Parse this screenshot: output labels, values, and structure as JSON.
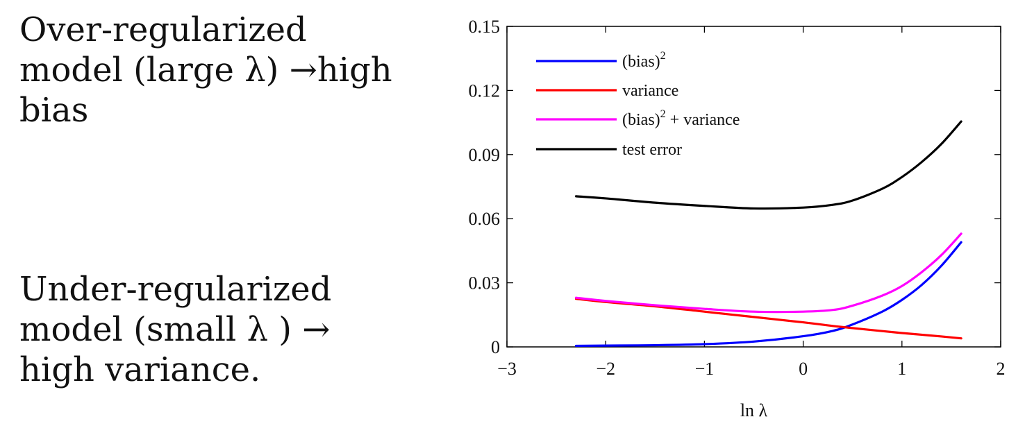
{
  "slide": {
    "over_lines": [
      "Over-regularized",
      "model (large λ) →high",
      "bias"
    ],
    "under_lines": [
      "Under-regularized",
      "model (small λ ) →",
      "high variance."
    ]
  },
  "chart_data": {
    "type": "line",
    "xlabel": "ln λ",
    "ylabel": "",
    "xlim": [
      -3,
      2
    ],
    "ylim": [
      0,
      0.15
    ],
    "x_ticks": [
      -3,
      -2,
      -1,
      0,
      1,
      2
    ],
    "x_tick_labels": [
      "−3",
      "−2",
      "−1",
      "0",
      "1",
      "2"
    ],
    "y_ticks": [
      0,
      0.03,
      0.06,
      0.09,
      0.12,
      0.15
    ],
    "y_tick_labels": [
      "0",
      "0.03",
      "0.06",
      "0.09",
      "0.12",
      "0.15"
    ],
    "grid": false,
    "legend_position": "top-left",
    "x": [
      -2.3,
      -2.0,
      -1.5,
      -1.0,
      -0.5,
      0.0,
      0.3,
      0.5,
      0.8,
      1.0,
      1.2,
      1.4,
      1.6
    ],
    "series": [
      {
        "name": "(bias)",
        "superscript": "2",
        "color": "#0000ff",
        "values": [
          0.0005,
          0.0006,
          0.0008,
          0.0013,
          0.0025,
          0.005,
          0.0075,
          0.0105,
          0.0165,
          0.022,
          0.029,
          0.038,
          0.049
        ]
      },
      {
        "name": "variance",
        "superscript": "",
        "color": "#ff0000",
        "values": [
          0.0225,
          0.021,
          0.019,
          0.0165,
          0.014,
          0.0115,
          0.0098,
          0.0088,
          0.0074,
          0.0065,
          0.0057,
          0.0049,
          0.004
        ]
      },
      {
        "name": "(bias)",
        "superscript": "2",
        "name_suffix": " + variance",
        "color": "#ff00ff",
        "values": [
          0.023,
          0.0215,
          0.0195,
          0.0178,
          0.0165,
          0.0165,
          0.0173,
          0.0193,
          0.024,
          0.0285,
          0.035,
          0.043,
          0.053
        ]
      },
      {
        "name": "test error",
        "superscript": "",
        "color": "#000000",
        "values": [
          0.0705,
          0.0695,
          0.0675,
          0.066,
          0.0648,
          0.0652,
          0.0665,
          0.0685,
          0.074,
          0.0795,
          0.0865,
          0.095,
          0.1055
        ]
      }
    ]
  }
}
